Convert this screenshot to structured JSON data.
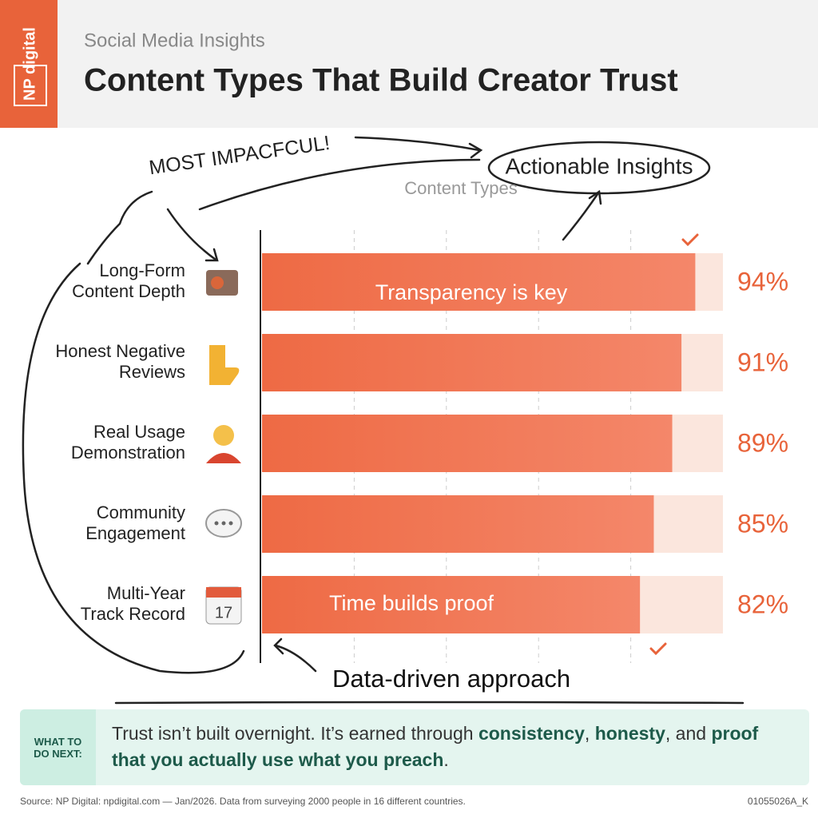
{
  "header": {
    "logo": "NP digital",
    "subtitle": "Social Media Insights"
  },
  "chart_data": {
    "type": "bar",
    "title": "Content Types That Build Creator Trust",
    "axis_label": "Content Types",
    "categories": [
      "Long-Form\nContent Depth",
      "Honest Negative\nReviews",
      "Real Usage\nDemonstration",
      "Community\nEngagement",
      "Multi-Year\nTrack Record"
    ],
    "values": [
      94,
      91,
      89,
      85,
      82
    ],
    "value_labels": [
      "94%",
      "91%",
      "89%",
      "85%",
      "82%"
    ],
    "color": "#ee6a44",
    "track_color": "#fbe6dd",
    "label_color": "#e8633a",
    "xlim": [
      0,
      100
    ],
    "xticks": [
      20,
      40,
      60,
      80
    ],
    "grid": true,
    "annotations": [
      "MOST IMPACFCUL!",
      "Actionable Insights",
      "Transparency is key",
      "Time builds proof",
      "Data-driven approach"
    ]
  },
  "callout": {
    "heading": "WHAT TO DO NEXT:",
    "parts": [
      {
        "text": "Trust isn’t built overnight. It’s earned through ",
        "bold": false
      },
      {
        "text": "consistency",
        "bold": true
      },
      {
        "text": ", ",
        "bold": false
      },
      {
        "text": "honesty",
        "bold": true
      },
      {
        "text": ", and ",
        "bold": false
      },
      {
        "text": "proof that you actually use what you preach",
        "bold": true
      },
      {
        "text": ".",
        "bold": false
      }
    ]
  },
  "footer": {
    "source": "Source: NP Digital: npdigital.com — Jan/2026. Data from surveying 2000 people in 16 different countries.",
    "code": "01055026A_K"
  }
}
